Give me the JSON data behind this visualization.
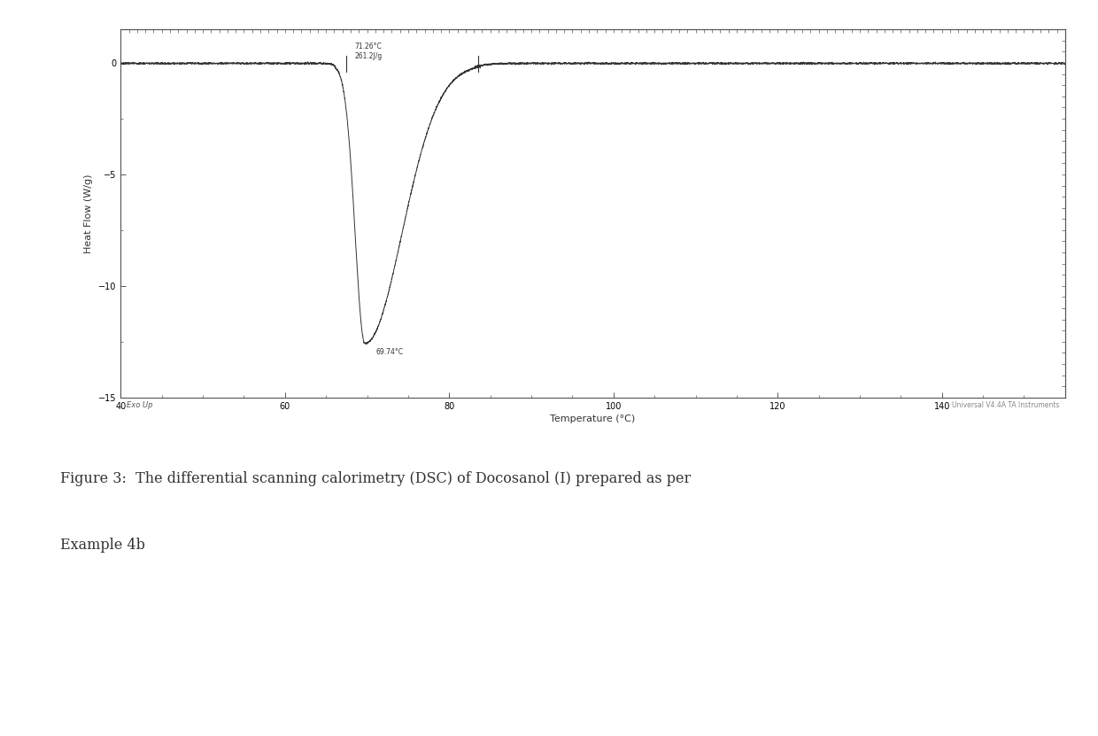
{
  "xlabel": "Temperature (°C)",
  "ylabel": "Heat Flow (W/g)",
  "xlim": [
    40,
    155
  ],
  "ylim": [
    -15,
    1.5
  ],
  "xticks": [
    40,
    60,
    80,
    100,
    120,
    140
  ],
  "yticks": [
    -15,
    -10,
    -5,
    0
  ],
  "peak_temp": 69.74,
  "onset_temp": 67.5,
  "end_temp": 82.5,
  "annotation_label": "71.26°C\n261.2J/g",
  "peak_label": "69.74°C",
  "line_color": "#333333",
  "background_color": "#ffffff",
  "plot_bg_color": "#ffffff",
  "border_color": "#555555",
  "watermark": "Universal V4.4A TA Instruments",
  "exo_up_label": "Exo Up",
  "caption_line1": "Figure 3:  The differential scanning calorimetry (DSC) of Docosanol (I) prepared as per",
  "caption_line2": "Example 4b"
}
